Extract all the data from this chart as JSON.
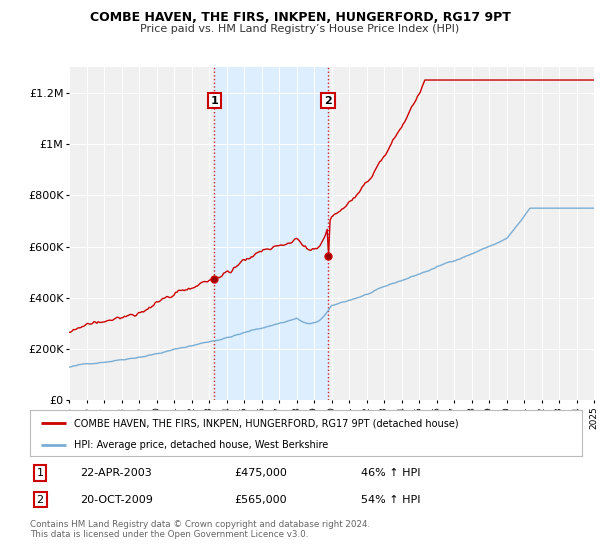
{
  "title": "COMBE HAVEN, THE FIRS, INKPEN, HUNGERFORD, RG17 9PT",
  "subtitle": "Price paid vs. HM Land Registry’s House Price Index (HPI)",
  "ylim": [
    0,
    1300000
  ],
  "yticks": [
    0,
    200000,
    400000,
    600000,
    800000,
    1000000,
    1200000
  ],
  "ytick_labels": [
    "£0",
    "£200K",
    "£400K",
    "£600K",
    "£800K",
    "£1M",
    "£1.2M"
  ],
  "background_color": "#ffffff",
  "plot_bg_color": "#f0f0f0",
  "line1_color": "#cc0000",
  "line2_color": "#7aadd4",
  "shade_color": "#ddeeff",
  "marker1_year": 2003.31,
  "marker1_value": 475000,
  "marker2_year": 2009.8,
  "marker2_value": 565000,
  "legend_line1": "COMBE HAVEN, THE FIRS, INKPEN, HUNGERFORD, RG17 9PT (detached house)",
  "legend_line2": "HPI: Average price, detached house, West Berkshire",
  "annotation1_date": "22-APR-2003",
  "annotation1_value": "£475,000",
  "annotation1_hpi": "46% ↑ HPI",
  "annotation2_date": "20-OCT-2009",
  "annotation2_value": "£565,000",
  "annotation2_hpi": "54% ↑ HPI",
  "footer": "Contains HM Land Registry data © Crown copyright and database right 2024.\nThis data is licensed under the Open Government Licence v3.0.",
  "xmin": 1995,
  "xmax": 2025
}
